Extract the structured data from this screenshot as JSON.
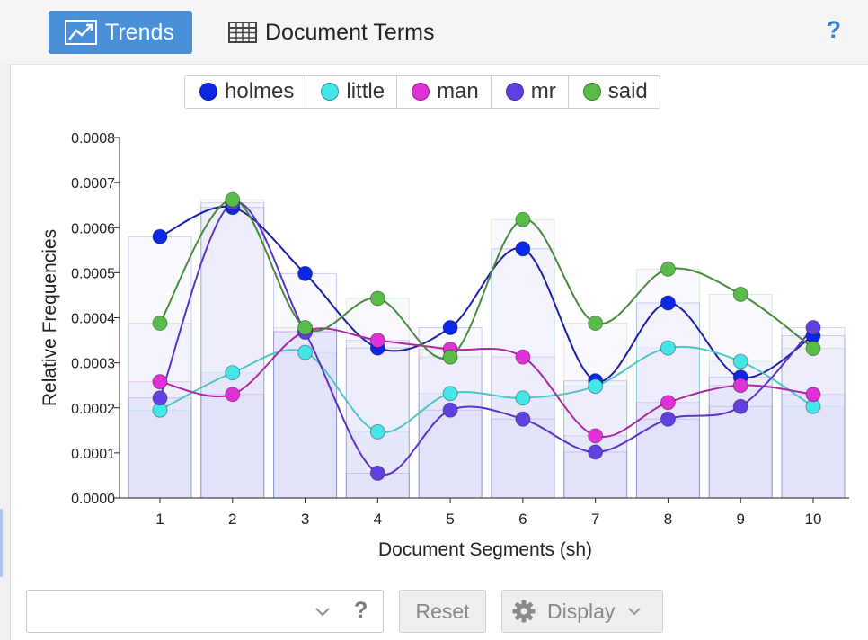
{
  "toolbar": {
    "tabs": [
      {
        "label": "Trends",
        "icon": "line-chart-icon",
        "active": true
      },
      {
        "label": "Document Terms",
        "icon": "table-grid-icon",
        "active": false
      }
    ],
    "help": "?"
  },
  "legend": [
    {
      "label": "holmes",
      "color": "#0a28e6"
    },
    {
      "label": "little",
      "color": "#44e6e8"
    },
    {
      "label": "man",
      "color": "#e030d8"
    },
    {
      "label": "mr",
      "color": "#6040e0"
    },
    {
      "label": "said",
      "color": "#58bd48"
    }
  ],
  "chart_data": {
    "type": "line",
    "xlabel": "Document Segments (sh)",
    "ylabel": "Relative Frequencies",
    "ylim": [
      0,
      0.0008
    ],
    "yticks": [
      "0.0000",
      "0.0001",
      "0.0002",
      "0.0003",
      "0.0004",
      "0.0005",
      "0.0006",
      "0.0007",
      "0.0008"
    ],
    "categories": [
      "1",
      "2",
      "3",
      "4",
      "5",
      "6",
      "7",
      "8",
      "9",
      "10"
    ],
    "series": [
      {
        "name": "holmes",
        "color": "#0a28e6",
        "line": "#1a1fa8",
        "values": [
          0.00058,
          0.000645,
          0.000498,
          0.000333,
          0.000378,
          0.000553,
          0.00026,
          0.000433,
          0.000268,
          0.00036
        ]
      },
      {
        "name": "little",
        "color": "#44e6e8",
        "line": "#50c4c8",
        "values": [
          0.000195,
          0.000278,
          0.000323,
          0.000147,
          0.000232,
          0.000222,
          0.000248,
          0.000333,
          0.000303,
          0.000203
        ]
      },
      {
        "name": "man",
        "color": "#e030d8",
        "line": "#a928a4",
        "values": [
          0.000258,
          0.00023,
          0.00037,
          0.00035,
          0.00033,
          0.000313,
          0.000138,
          0.000212,
          0.00025,
          0.00023
        ]
      },
      {
        "name": "mr",
        "color": "#6040e0",
        "line": "#5a33c8",
        "values": [
          0.000222,
          0.000655,
          0.000368,
          5.5e-05,
          0.000195,
          0.000175,
          0.000102,
          0.000175,
          0.000203,
          0.000378
        ]
      },
      {
        "name": "said",
        "color": "#58bd48",
        "line": "#4a8a3c",
        "values": [
          0.000388,
          0.000662,
          0.000378,
          0.000443,
          0.000313,
          0.000618,
          0.000388,
          0.000508,
          0.000452,
          0.000332
        ]
      }
    ]
  },
  "controls": {
    "combo_value": "",
    "combo_help": "?",
    "reset_label": "Reset",
    "display_label": "Display"
  }
}
